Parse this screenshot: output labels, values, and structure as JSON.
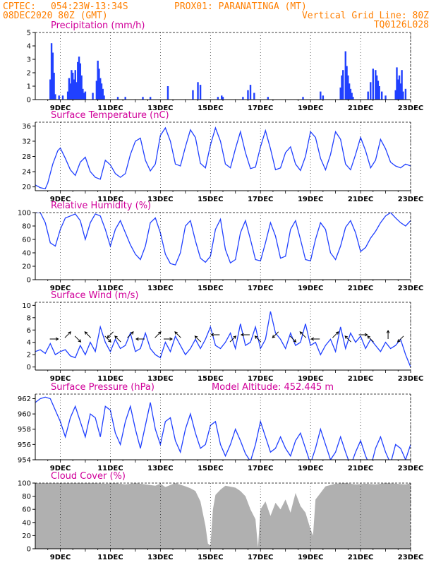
{
  "header": {
    "source": "CPTEC:",
    "location": "054:23W-13:34S",
    "station": "PROX01: PARANATINGA (MT)",
    "run": "08DEC2020 80Z (GMT)",
    "grid_note": "Vertical Grid Line: 80Z",
    "model_code": "TQ0126L028"
  },
  "colors": {
    "header": "#ff7f00",
    "title": "#d0009a",
    "series": "#2040ff",
    "cloud": "#b0b0b0"
  },
  "x_dates": [
    "9DEC",
    "11DEC",
    "13DEC",
    "15DEC",
    "17DEC",
    "19DEC",
    "21DEC",
    "23DEC"
  ],
  "chart_data": [
    {
      "type": "bar",
      "title": "Precipitation (mm/h)",
      "ylim": [
        0,
        5
      ],
      "yticks": [
        0,
        1,
        2,
        3,
        4,
        5
      ],
      "x": [
        8.6,
        8.65,
        8.7,
        8.75,
        8.8,
        8.95,
        9.1,
        9.3,
        9.35,
        9.4,
        9.45,
        9.5,
        9.55,
        9.6,
        9.65,
        9.7,
        9.75,
        9.8,
        9.85,
        9.9,
        9.95,
        10.0,
        10.3,
        10.45,
        10.5,
        10.55,
        10.6,
        10.65,
        10.7,
        10.75,
        11.3,
        11.6,
        12.3,
        12.6,
        13.3,
        14.3,
        14.5,
        14.6,
        15.3,
        15.45,
        15.5,
        16.3,
        16.5,
        16.6,
        16.75,
        17.3,
        18.7,
        19.4,
        19.5,
        20.2,
        20.25,
        20.3,
        20.4,
        20.45,
        20.5,
        20.55,
        20.6,
        20.65,
        20.7,
        21.3,
        21.4,
        21.5,
        21.6,
        21.65,
        21.7,
        21.75,
        21.85,
        22.0,
        22.4,
        22.45,
        22.5,
        22.55,
        22.6,
        22.65,
        22.7,
        22.8
      ],
      "values": [
        1.5,
        4.2,
        3.5,
        2.0,
        0.4,
        0.3,
        0.3,
        0.6,
        1.6,
        1.2,
        2.2,
        2.0,
        1.5,
        2.2,
        1.3,
        2.8,
        3.2,
        2.7,
        1.8,
        0.8,
        0.5,
        0.6,
        0.5,
        1.4,
        2.9,
        2.3,
        1.6,
        1.2,
        0.8,
        0.3,
        0.2,
        0.2,
        0.2,
        0.2,
        1.0,
        0.7,
        1.3,
        1.1,
        0.2,
        0.3,
        0.2,
        0.2,
        0.7,
        1.1,
        0.5,
        0.2,
        0.2,
        0.6,
        0.3,
        0.9,
        1.8,
        2.2,
        3.6,
        2.5,
        1.8,
        1.2,
        0.8,
        0.5,
        0.2,
        0.6,
        1.3,
        2.3,
        2.2,
        1.8,
        1.4,
        1.0,
        0.6,
        0.3,
        0.7,
        2.4,
        1.5,
        1.8,
        1.2,
        2.2,
        0.6,
        0.8
      ],
      "xlim": [
        8.0,
        23.0
      ]
    },
    {
      "type": "line",
      "title": "Surface Temperature (nC)",
      "ylim": [
        19,
        37
      ],
      "yticks": [
        20,
        24,
        28,
        32,
        36
      ],
      "x": [
        8.0,
        8.2,
        8.4,
        8.5,
        8.7,
        8.9,
        9.0,
        9.2,
        9.4,
        9.6,
        9.8,
        10.0,
        10.2,
        10.4,
        10.6,
        10.8,
        11.0,
        11.2,
        11.4,
        11.6,
        11.8,
        12.0,
        12.2,
        12.4,
        12.6,
        12.8,
        13.0,
        13.2,
        13.4,
        13.6,
        13.8,
        14.0,
        14.2,
        14.4,
        14.6,
        14.8,
        15.0,
        15.2,
        15.4,
        15.6,
        15.8,
        16.0,
        16.2,
        16.4,
        16.6,
        16.8,
        17.0,
        17.2,
        17.4,
        17.6,
        17.8,
        18.0,
        18.2,
        18.4,
        18.6,
        18.8,
        19.0,
        19.2,
        19.4,
        19.6,
        19.8,
        20.0,
        20.2,
        20.4,
        20.6,
        20.8,
        21.0,
        21.2,
        21.4,
        21.6,
        21.8,
        22.0,
        22.2,
        22.4,
        22.6,
        22.8,
        23.0
      ],
      "values": [
        20.5,
        19.8,
        19.5,
        21.0,
        26.0,
        29.5,
        30.2,
        27.5,
        24.5,
        23.0,
        26.5,
        27.8,
        24.0,
        22.5,
        22.0,
        27.0,
        25.8,
        23.5,
        22.5,
        23.5,
        28.5,
        32.0,
        32.8,
        27.0,
        24.2,
        26.0,
        33.5,
        35.5,
        32.0,
        26.0,
        25.5,
        30.5,
        35.0,
        33.0,
        26.2,
        25.0,
        31.0,
        35.5,
        32.0,
        26.0,
        25.0,
        30.0,
        34.5,
        29.0,
        24.8,
        25.2,
        30.5,
        34.8,
        30.0,
        24.5,
        25.0,
        29.0,
        30.5,
        26.0,
        24.3,
        28.0,
        34.5,
        33.0,
        27.5,
        24.5,
        28.5,
        34.5,
        32.5,
        26.0,
        24.5,
        28.5,
        33.0,
        29.5,
        25.0,
        27.0,
        32.5,
        30.0,
        26.5,
        25.5,
        25.0,
        26.0,
        25.5
      ],
      "xlim": [
        8.0,
        23.0
      ]
    },
    {
      "type": "line",
      "title": "Relative Humidity (%)",
      "ylim": [
        0,
        100
      ],
      "yticks": [
        0,
        20,
        40,
        60,
        80,
        100
      ],
      "x": [
        8.0,
        8.2,
        8.4,
        8.6,
        8.8,
        9.0,
        9.2,
        9.4,
        9.6,
        9.8,
        10.0,
        10.2,
        10.4,
        10.6,
        10.8,
        11.0,
        11.2,
        11.4,
        11.6,
        11.8,
        12.0,
        12.2,
        12.4,
        12.6,
        12.8,
        13.0,
        13.2,
        13.4,
        13.6,
        13.8,
        14.0,
        14.2,
        14.4,
        14.6,
        14.8,
        15.0,
        15.2,
        15.4,
        15.6,
        15.8,
        16.0,
        16.2,
        16.4,
        16.6,
        16.8,
        17.0,
        17.2,
        17.4,
        17.6,
        17.8,
        18.0,
        18.2,
        18.4,
        18.6,
        18.8,
        19.0,
        19.2,
        19.4,
        19.6,
        19.8,
        20.0,
        20.2,
        20.4,
        20.6,
        20.8,
        21.0,
        21.2,
        21.4,
        21.6,
        21.8,
        22.0,
        22.2,
        22.4,
        22.6,
        22.8,
        23.0
      ],
      "values": [
        100,
        100,
        85,
        55,
        50,
        75,
        92,
        95,
        98,
        88,
        60,
        85,
        98,
        95,
        75,
        50,
        75,
        88,
        70,
        52,
        38,
        30,
        50,
        85,
        92,
        70,
        38,
        24,
        22,
        40,
        80,
        88,
        58,
        32,
        26,
        35,
        75,
        90,
        45,
        25,
        30,
        70,
        88,
        60,
        30,
        28,
        55,
        85,
        65,
        32,
        35,
        75,
        88,
        60,
        30,
        28,
        60,
        85,
        75,
        40,
        30,
        50,
        78,
        88,
        70,
        42,
        48,
        62,
        72,
        85,
        95,
        100,
        92,
        85,
        80,
        88
      ],
      "xlim": [
        8.0,
        23.0
      ]
    },
    {
      "type": "line",
      "title": "Surface Wind (m/s)",
      "ylim": [
        -0.5,
        10.5
      ],
      "yticks": [
        0,
        2,
        4,
        6,
        8,
        10
      ],
      "x": [
        8.0,
        8.2,
        8.4,
        8.6,
        8.8,
        9.0,
        9.2,
        9.4,
        9.6,
        9.8,
        10.0,
        10.2,
        10.4,
        10.6,
        10.8,
        11.0,
        11.2,
        11.4,
        11.6,
        11.8,
        12.0,
        12.2,
        12.4,
        12.6,
        12.8,
        13.0,
        13.2,
        13.4,
        13.6,
        13.8,
        14.0,
        14.2,
        14.4,
        14.6,
        14.8,
        15.0,
        15.2,
        15.4,
        15.6,
        15.8,
        16.0,
        16.2,
        16.4,
        16.6,
        16.8,
        17.0,
        17.2,
        17.4,
        17.6,
        17.8,
        18.0,
        18.2,
        18.4,
        18.6,
        18.8,
        19.0,
        19.2,
        19.4,
        19.6,
        19.8,
        20.0,
        20.2,
        20.4,
        20.6,
        20.8,
        21.0,
        21.2,
        21.4,
        21.6,
        21.8,
        22.0,
        22.2,
        22.4,
        22.6,
        22.8,
        23.0
      ],
      "values": [
        2.5,
        2.8,
        2.2,
        3.8,
        2.0,
        2.5,
        2.8,
        1.8,
        1.5,
        3.5,
        2.0,
        4.0,
        2.5,
        6.5,
        4.0,
        2.5,
        4.5,
        3.0,
        3.5,
        5.5,
        2.5,
        3.0,
        5.5,
        3.0,
        2.0,
        1.5,
        4.0,
        2.5,
        5.0,
        3.5,
        2.0,
        3.0,
        4.5,
        3.0,
        4.5,
        6.5,
        3.5,
        3.0,
        4.0,
        5.5,
        3.0,
        7.0,
        3.5,
        4.0,
        6.5,
        3.0,
        4.5,
        9.0,
        5.5,
        4.5,
        3.0,
        5.5,
        3.5,
        4.0,
        7.0,
        3.5,
        4.0,
        2.0,
        3.5,
        4.5,
        2.5,
        6.5,
        3.0,
        5.5,
        4.0,
        5.0,
        3.0,
        4.5,
        3.5,
        2.5,
        4.0,
        3.0,
        3.5,
        4.5,
        2.0,
        0.0
      ],
      "xlim": [
        8.0,
        23.0
      ],
      "wind_barbs": [
        {
          "x": 8.75,
          "dir": "east"
        },
        {
          "x": 9.3,
          "dir": "northeast"
        },
        {
          "x": 9.7,
          "dir": "southeast"
        },
        {
          "x": 10.1,
          "dir": "northwest"
        },
        {
          "x": 10.9,
          "dir": "southeast"
        },
        {
          "x": 11.0,
          "dir": "southwest"
        },
        {
          "x": 11.3,
          "dir": "northwest"
        },
        {
          "x": 11.8,
          "dir": "northeast"
        },
        {
          "x": 12.2,
          "dir": "west"
        },
        {
          "x": 12.9,
          "dir": "northeast"
        },
        {
          "x": 13.3,
          "dir": "east"
        },
        {
          "x": 13.7,
          "dir": "northwest"
        },
        {
          "x": 14.5,
          "dir": "northwest"
        },
        {
          "x": 15.2,
          "dir": "west"
        },
        {
          "x": 15.9,
          "dir": "northeast"
        },
        {
          "x": 16.4,
          "dir": "west"
        },
        {
          "x": 16.9,
          "dir": "northwest"
        },
        {
          "x": 17.6,
          "dir": "southwest"
        },
        {
          "x": 18.3,
          "dir": "southeast"
        },
        {
          "x": 18.7,
          "dir": "northwest"
        },
        {
          "x": 19.2,
          "dir": "west"
        },
        {
          "x": 20.0,
          "dir": "northeast"
        },
        {
          "x": 20.5,
          "dir": "northwest"
        },
        {
          "x": 21.1,
          "dir": "east"
        },
        {
          "x": 21.4,
          "dir": "northwest"
        },
        {
          "x": 22.1,
          "dir": "north"
        },
        {
          "x": 22.6,
          "dir": "southwest"
        }
      ]
    },
    {
      "type": "line",
      "title": "Surface Pressure (hPa)",
      "model_altitude": "Model Altitude: 452.445 m",
      "ylim": [
        954,
        962.6
      ],
      "yticks": [
        954,
        956,
        958,
        960,
        962
      ],
      "x": [
        8.0,
        8.2,
        8.4,
        8.6,
        8.8,
        9.0,
        9.2,
        9.4,
        9.6,
        9.8,
        10.0,
        10.2,
        10.4,
        10.6,
        10.8,
        11.0,
        11.2,
        11.4,
        11.6,
        11.8,
        12.0,
        12.2,
        12.4,
        12.6,
        12.8,
        13.0,
        13.2,
        13.4,
        13.6,
        13.8,
        14.0,
        14.2,
        14.4,
        14.6,
        14.8,
        15.0,
        15.2,
        15.4,
        15.6,
        15.8,
        16.0,
        16.2,
        16.4,
        16.6,
        16.8,
        17.0,
        17.2,
        17.4,
        17.6,
        17.8,
        18.0,
        18.2,
        18.4,
        18.6,
        18.8,
        19.0,
        19.2,
        19.4,
        19.6,
        19.8,
        20.0,
        20.2,
        20.4,
        20.6,
        20.8,
        21.0,
        21.2,
        21.4,
        21.6,
        21.8,
        22.0,
        22.2,
        22.4,
        22.6,
        22.8,
        23.0
      ],
      "values": [
        961.5,
        962.0,
        962.2,
        962.0,
        960.5,
        959.0,
        957.0,
        959.5,
        961.0,
        959.0,
        957.0,
        960.0,
        959.5,
        957.0,
        961.0,
        960.5,
        957.5,
        956.0,
        959.0,
        961.0,
        958.0,
        955.5,
        958.5,
        961.5,
        958.0,
        956.0,
        959.0,
        959.5,
        956.5,
        955.0,
        958.0,
        960.0,
        957.5,
        955.5,
        956.0,
        958.5,
        959.0,
        956.0,
        954.5,
        956.0,
        958.0,
        956.5,
        954.8,
        953.8,
        956.0,
        959.0,
        957.0,
        955.0,
        955.5,
        957.0,
        955.5,
        954.5,
        956.5,
        957.5,
        955.5,
        953.5,
        955.5,
        958.0,
        956.0,
        954.0,
        955.0,
        957.0,
        955.0,
        953.2,
        955.0,
        956.5,
        954.5,
        953.0,
        955.5,
        957.0,
        955.0,
        953.5,
        956.0,
        955.5,
        954.0,
        956.0
      ],
      "xlim": [
        8.0,
        23.0
      ]
    },
    {
      "type": "area",
      "title": "Cloud Cover (%)",
      "ylim": [
        0,
        100
      ],
      "yticks": [
        0,
        20,
        40,
        60,
        80,
        100
      ],
      "x": [
        8.0,
        8.4,
        8.8,
        9.2,
        9.6,
        10.0,
        10.4,
        10.8,
        11.2,
        11.6,
        12.0,
        12.4,
        12.8,
        13.0,
        13.2,
        13.4,
        13.6,
        14.0,
        14.2,
        14.4,
        14.6,
        14.8,
        14.9,
        15.0,
        15.1,
        15.2,
        15.4,
        15.6,
        16.0,
        16.2,
        16.4,
        16.6,
        16.8,
        16.9,
        17.0,
        17.2,
        17.4,
        17.6,
        17.8,
        18.0,
        18.2,
        18.4,
        18.6,
        18.8,
        19.0,
        19.1,
        19.2,
        19.4,
        19.6,
        20.0,
        20.4,
        20.8,
        21.2,
        21.6,
        22.0,
        22.4,
        22.8,
        23.0
      ],
      "values": [
        100,
        100,
        100,
        100,
        100,
        100,
        100,
        99,
        100,
        98,
        100,
        98,
        96,
        99,
        94,
        97,
        100,
        95,
        92,
        88,
        72,
        35,
        8,
        5,
        60,
        82,
        90,
        96,
        93,
        88,
        80,
        60,
        45,
        2,
        60,
        72,
        50,
        70,
        60,
        75,
        55,
        85,
        65,
        55,
        30,
        20,
        75,
        85,
        95,
        99,
        100,
        98,
        99,
        98,
        100,
        99,
        98,
        100
      ],
      "xlim": [
        8.0,
        23.0
      ]
    }
  ]
}
